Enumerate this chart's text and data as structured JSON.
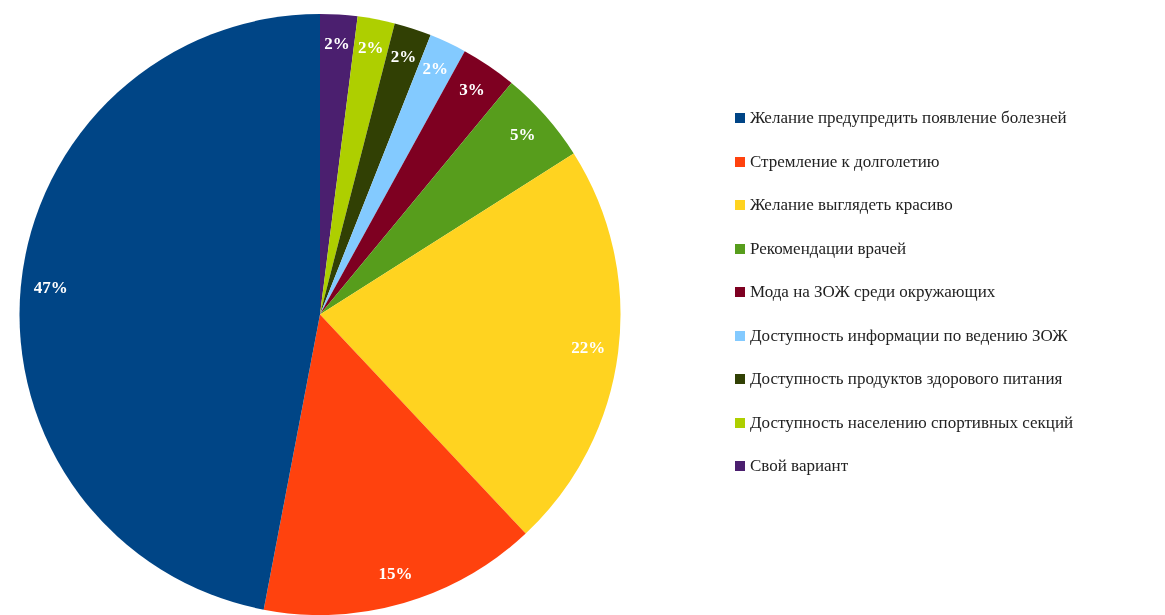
{
  "chart_data": {
    "type": "pie",
    "categories": [
      "Желание предупредить появление болезней",
      "Стремление к долголетию",
      "Желание выглядеть красиво",
      "Рекомендации врачей",
      "Мода на ЗОЖ среди окружающих",
      "Доступность информации по ведению ЗОЖ",
      "Доступность продуктов здорового питания",
      "Доступность населению спортивных секций",
      "Свой вариант"
    ],
    "values": [
      47,
      15,
      22,
      5,
      3,
      2,
      2,
      2,
      2
    ],
    "value_labels": [
      "47%",
      "15%",
      "22%",
      "5%",
      "3%",
      "2%",
      "2%",
      "2%",
      "2%"
    ],
    "colors": [
      "#004586",
      "#ff420e",
      "#ffd320",
      "#579d1c",
      "#7e0021",
      "#83caff",
      "#314004",
      "#aecf00",
      "#4b1f6f"
    ],
    "legend": "right"
  }
}
